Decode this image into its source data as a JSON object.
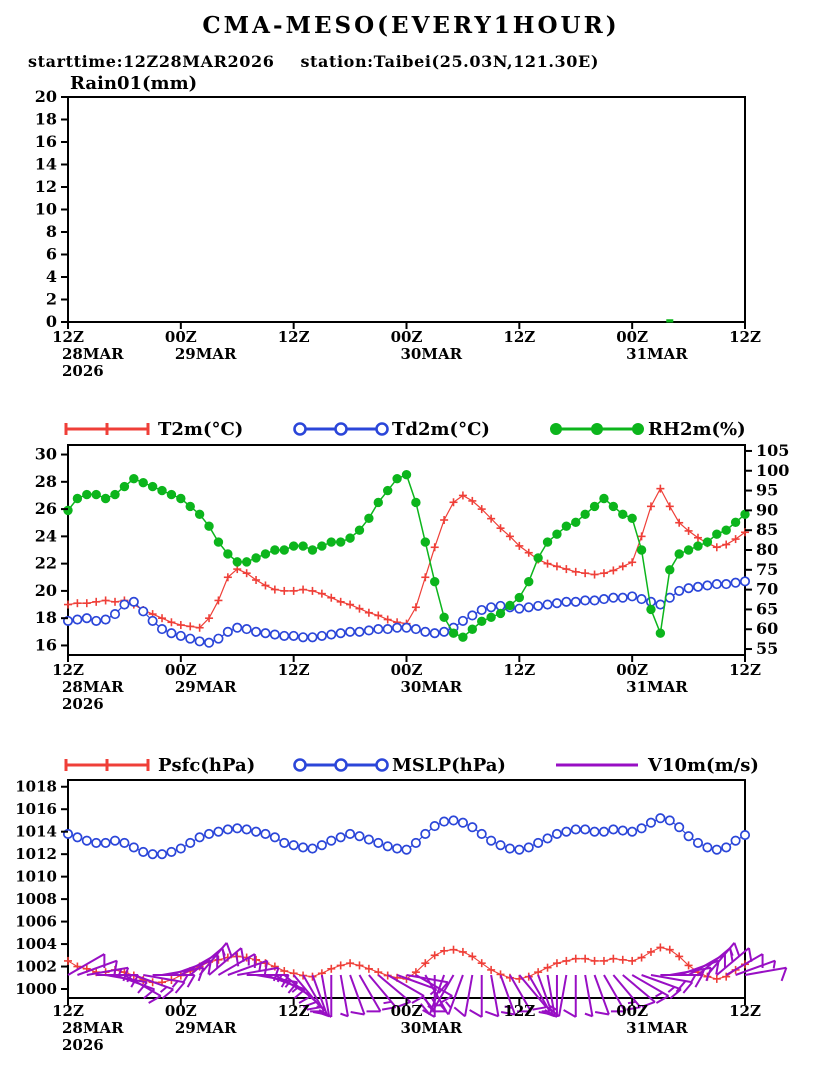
{
  "title": "CMA-MESO(EVERY1HOUR)",
  "subtitle": {
    "starttime": "starttime:12Z28MAR2026",
    "station": "station:Taibei(25.03N,121.30E)"
  },
  "colors": {
    "red": "#ef3f38",
    "blue": "#2b46d9",
    "green": "#0cb51c",
    "purple": "#980fc4",
    "axis": "#000000",
    "background": "#ffffff"
  },
  "x_axis": {
    "range_hours": [
      0,
      72
    ],
    "ticks": [
      {
        "hour": 0,
        "time": "12Z",
        "date": "28MAR",
        "year": "2026"
      },
      {
        "hour": 12,
        "time": "00Z",
        "date": "29MAR",
        "year": ""
      },
      {
        "hour": 24,
        "time": "12Z",
        "date": "",
        "year": ""
      },
      {
        "hour": 36,
        "time": "00Z",
        "date": "30MAR",
        "year": ""
      },
      {
        "hour": 48,
        "time": "12Z",
        "date": "",
        "year": ""
      },
      {
        "hour": 60,
        "time": "00Z",
        "date": "31MAR",
        "year": ""
      },
      {
        "hour": 72,
        "time": "12Z",
        "date": "",
        "year": ""
      }
    ]
  },
  "chart_data": [
    {
      "id": "rain",
      "type": "bar",
      "title": "Rain01(mm)",
      "ylim": [
        0,
        20
      ],
      "yticks": [
        0,
        2,
        4,
        6,
        8,
        10,
        12,
        14,
        16,
        18,
        20
      ],
      "x_start_hour": 0,
      "x_step_hours": 1,
      "bar_color_key": "green",
      "values": [
        0,
        0,
        0,
        0,
        0,
        0,
        0,
        0,
        0,
        0,
        0,
        0,
        0,
        0,
        0,
        0,
        0,
        0,
        0,
        0,
        0,
        0,
        0,
        0,
        0,
        0,
        0,
        0,
        0,
        0,
        0,
        0,
        0,
        0,
        0,
        0,
        0,
        0,
        0,
        0,
        0,
        0,
        0,
        0,
        0,
        0,
        0,
        0,
        0,
        0,
        0,
        0,
        0,
        0,
        0,
        0,
        0,
        0,
        0,
        0,
        0,
        0,
        0,
        0,
        0.2,
        0,
        0,
        0,
        0,
        0,
        0,
        0,
        0
      ]
    },
    {
      "id": "temp_rh",
      "type": "line",
      "left_ylim": [
        15.3,
        30.7
      ],
      "left_yticks": [
        16,
        18,
        20,
        22,
        24,
        26,
        28,
        30
      ],
      "right_ylim": [
        53.5,
        106.5
      ],
      "right_yticks": [
        55,
        60,
        65,
        70,
        75,
        80,
        85,
        90,
        95,
        100,
        105
      ],
      "x_start_hour": 0,
      "x_step_hours": 1,
      "series": [
        {
          "name": "T2m(°C)",
          "axis": "left",
          "marker": "plus",
          "color_key": "red",
          "values": [
            19.0,
            19.1,
            19.1,
            19.2,
            19.3,
            19.2,
            19.3,
            19.0,
            18.6,
            18.3,
            18.0,
            17.7,
            17.5,
            17.4,
            17.3,
            18.0,
            19.3,
            21.0,
            21.6,
            21.3,
            20.8,
            20.4,
            20.1,
            20.0,
            20.0,
            20.1,
            20.0,
            19.8,
            19.5,
            19.2,
            19.0,
            18.7,
            18.4,
            18.2,
            17.9,
            17.7,
            17.6,
            18.8,
            21.0,
            23.2,
            25.2,
            26.5,
            27.0,
            26.6,
            26.0,
            25.3,
            24.6,
            24.0,
            23.3,
            22.8,
            22.3,
            22.0,
            21.8,
            21.6,
            21.4,
            21.3,
            21.2,
            21.3,
            21.5,
            21.8,
            22.1,
            24.0,
            26.2,
            27.5,
            26.2,
            25.0,
            24.4,
            23.9,
            23.5,
            23.2,
            23.4,
            23.8,
            24.3
          ]
        },
        {
          "name": "Td2m(°C)",
          "axis": "left",
          "marker": "open-circle",
          "color_key": "blue",
          "values": [
            17.8,
            17.9,
            18.0,
            17.8,
            17.9,
            18.3,
            19.0,
            19.2,
            18.5,
            17.8,
            17.2,
            16.9,
            16.7,
            16.5,
            16.3,
            16.2,
            16.5,
            17.0,
            17.3,
            17.2,
            17.0,
            16.9,
            16.8,
            16.7,
            16.7,
            16.6,
            16.6,
            16.7,
            16.8,
            16.9,
            17.0,
            17.0,
            17.1,
            17.2,
            17.2,
            17.3,
            17.3,
            17.2,
            17.0,
            16.9,
            17.0,
            17.3,
            17.8,
            18.2,
            18.6,
            18.8,
            18.9,
            18.8,
            18.7,
            18.8,
            18.9,
            19.0,
            19.1,
            19.2,
            19.2,
            19.3,
            19.3,
            19.4,
            19.5,
            19.5,
            19.6,
            19.4,
            19.2,
            19.0,
            19.5,
            20.0,
            20.2,
            20.3,
            20.4,
            20.5,
            20.5,
            20.6,
            20.7
          ]
        },
        {
          "name": "RH2m(%)",
          "axis": "right",
          "marker": "filled-circle",
          "color_key": "green",
          "values": [
            90,
            93,
            94,
            94,
            93,
            94,
            96,
            98,
            97,
            96,
            95,
            94,
            93,
            91,
            89,
            86,
            82,
            79,
            77,
            77,
            78,
            79,
            80,
            80,
            81,
            81,
            80,
            81,
            82,
            82,
            83,
            85,
            88,
            92,
            95,
            98,
            99,
            92,
            82,
            72,
            63,
            59,
            58,
            60,
            62,
            63,
            64,
            66,
            68,
            72,
            78,
            82,
            84,
            86,
            87,
            89,
            91,
            93,
            91,
            89,
            88,
            80,
            65,
            59,
            75,
            79,
            80,
            81,
            82,
            84,
            85,
            87,
            89
          ]
        }
      ]
    },
    {
      "id": "pressure_wind",
      "type": "line",
      "left_ylim": [
        999.2,
        1018.6
      ],
      "left_yticks": [
        1000,
        1002,
        1004,
        1006,
        1008,
        1010,
        1012,
        1014,
        1016,
        1018
      ],
      "x_start_hour": 0,
      "x_step_hours": 1,
      "series": [
        {
          "name": "Psfc(hPa)",
          "axis": "left",
          "marker": "plus",
          "color_key": "red",
          "values": [
            1002.5,
            1002.0,
            1001.8,
            1001.5,
            1001.5,
            1001.7,
            1001.5,
            1001.2,
            1000.8,
            1000.6,
            1000.6,
            1000.8,
            1001.2,
            1001.6,
            1002.0,
            1002.4,
            1002.6,
            1002.8,
            1002.9,
            1002.8,
            1002.6,
            1002.3,
            1002.0,
            1001.6,
            1001.4,
            1001.2,
            1001.1,
            1001.4,
            1001.8,
            1002.1,
            1002.3,
            1002.1,
            1001.8,
            1001.5,
            1001.2,
            1001.0,
            1000.9,
            1001.5,
            1002.3,
            1003.0,
            1003.4,
            1003.5,
            1003.3,
            1002.9,
            1002.3,
            1001.7,
            1001.3,
            1001.0,
            1000.9,
            1001.1,
            1001.5,
            1001.9,
            1002.3,
            1002.5,
            1002.7,
            1002.7,
            1002.5,
            1002.5,
            1002.7,
            1002.6,
            1002.5,
            1002.8,
            1003.3,
            1003.7,
            1003.5,
            1002.9,
            1002.1,
            1001.5,
            1001.1,
            1000.9,
            1001.1,
            1001.7,
            1002.2
          ]
        },
        {
          "name": "MSLP(hPa)",
          "axis": "left",
          "marker": "open-circle",
          "color_key": "blue",
          "values": [
            1013.8,
            1013.5,
            1013.2,
            1013.0,
            1013.0,
            1013.2,
            1013.0,
            1012.6,
            1012.2,
            1012.0,
            1012.0,
            1012.2,
            1012.5,
            1013.0,
            1013.5,
            1013.8,
            1014.0,
            1014.2,
            1014.3,
            1014.2,
            1014.0,
            1013.8,
            1013.5,
            1013.0,
            1012.8,
            1012.6,
            1012.5,
            1012.8,
            1013.2,
            1013.5,
            1013.8,
            1013.6,
            1013.3,
            1013.0,
            1012.7,
            1012.5,
            1012.4,
            1013.0,
            1013.8,
            1014.5,
            1014.9,
            1015.0,
            1014.8,
            1014.4,
            1013.8,
            1013.2,
            1012.8,
            1012.5,
            1012.4,
            1012.6,
            1013.0,
            1013.4,
            1013.8,
            1014.0,
            1014.2,
            1014.2,
            1014.0,
            1014.0,
            1014.2,
            1014.1,
            1014.0,
            1014.3,
            1014.8,
            1015.2,
            1015.0,
            1014.4,
            1013.6,
            1013.0,
            1012.6,
            1012.4,
            1012.6,
            1013.2,
            1013.7
          ]
        },
        {
          "name": "V10m(m/s)",
          "axis": "left",
          "marker": "barb",
          "color_key": "purple",
          "speeds_ms": [
            4,
            5,
            6,
            6,
            5,
            4,
            5,
            6,
            7,
            6,
            5,
            4,
            5,
            6,
            7,
            8,
            7,
            6,
            5,
            6,
            7,
            6,
            5,
            4,
            4,
            5,
            6,
            5,
            4,
            3,
            4,
            5,
            6,
            5,
            4,
            3,
            4,
            5,
            6,
            7,
            8,
            7,
            6,
            5,
            4,
            5,
            6,
            5,
            4,
            3,
            4,
            5,
            6,
            5,
            4,
            3,
            4,
            5,
            6,
            5,
            6,
            7,
            8,
            7,
            6,
            5,
            4,
            5,
            6,
            5,
            4,
            3,
            4
          ],
          "directions_deg": [
            60,
            70,
            80,
            90,
            100,
            110,
            120,
            110,
            100,
            90,
            80,
            70,
            60,
            50,
            40,
            50,
            60,
            70,
            80,
            90,
            100,
            110,
            120,
            130,
            140,
            150,
            160,
            170,
            180,
            170,
            160,
            150,
            140,
            130,
            120,
            110,
            100,
            120,
            150,
            180,
            200,
            210,
            200,
            190,
            180,
            170,
            160,
            150,
            140,
            150,
            160,
            170,
            180,
            190,
            180,
            170,
            160,
            150,
            140,
            130,
            120,
            110,
            100,
            90,
            80,
            70,
            60,
            50,
            40,
            50,
            60,
            70,
            80
          ]
        }
      ]
    }
  ]
}
